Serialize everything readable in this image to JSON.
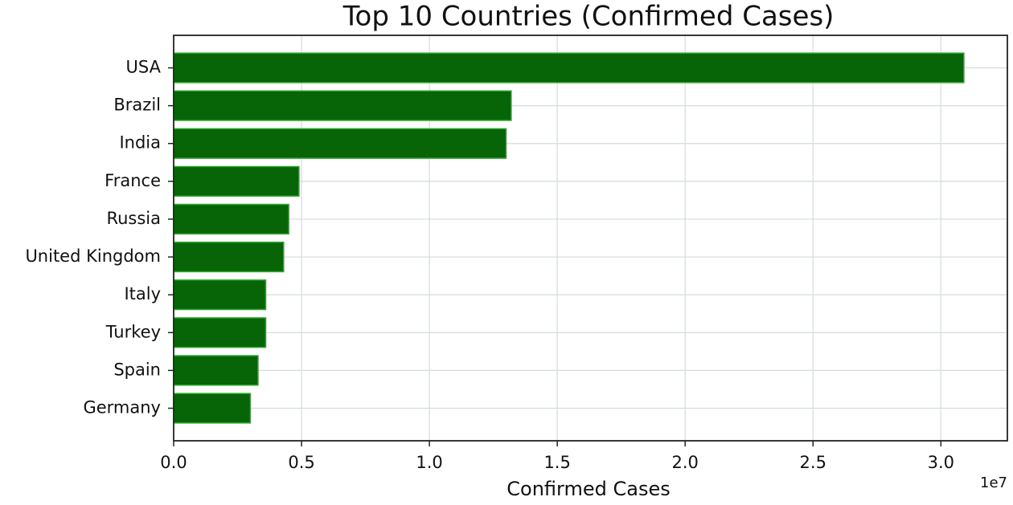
{
  "chart_data": {
    "type": "barh",
    "title": "Top 10 Countries (Confirmed Cases)",
    "categories": [
      "USA",
      "Brazil",
      "India",
      "France",
      "Russia",
      "United Kingdom",
      "Italy",
      "Turkey",
      "Spain",
      "Germany"
    ],
    "values": [
      3.09,
      1.32,
      1.3,
      0.49,
      0.45,
      0.43,
      0.36,
      0.36,
      0.33,
      0.3
    ],
    "color": "#076407",
    "edge_color": "#2fa82f",
    "xlabel": "Confirmed Cases",
    "x_offset_label": "1e7",
    "xlim": [
      0,
      3.26
    ],
    "xticks": [
      {
        "value": 0,
        "label": "0.0"
      },
      0.5,
      {
        "value": 1,
        "label": "1.0"
      },
      1.5,
      {
        "value": 2,
        "label": "2.0"
      },
      2.5,
      {
        "value": 3,
        "label": "3.0"
      }
    ],
    "grid": true
  }
}
